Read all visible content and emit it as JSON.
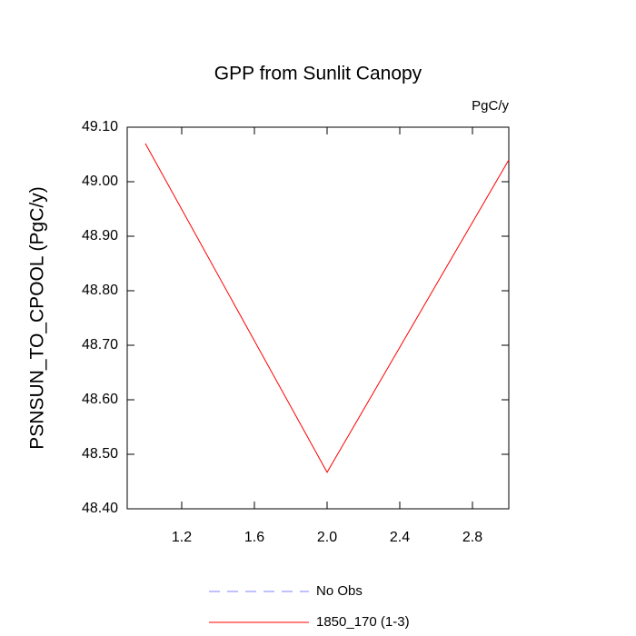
{
  "chart_data": {
    "type": "line",
    "title": "GPP from Sunlit Canopy",
    "units": "PgC/y",
    "y_label": "PSNSUN_TO_CPOOL  (PgC/y)",
    "x": [
      1,
      2,
      3
    ],
    "series": [
      {
        "name": "No Obs",
        "color": "#8080ff",
        "dashed": true,
        "values": [
          null,
          null,
          null
        ]
      },
      {
        "name": "1850_170 (1-3)",
        "color": "#ff0000",
        "dashed": false,
        "values": [
          49.07,
          48.467,
          49.04
        ]
      }
    ],
    "xlim": [
      0.9,
      3.0
    ],
    "xticks": [
      1.2,
      1.6,
      {
        "value": 2,
        "label": "2.0"
      },
      2.4,
      2.8
    ],
    "ylim": [
      48.4,
      49.1
    ],
    "yticks": [
      {
        "value": 48.4,
        "label": "48.40"
      },
      {
        "value": 48.5,
        "label": "48.50"
      },
      {
        "value": 48.6,
        "label": "48.60"
      },
      {
        "value": 48.7,
        "label": "48.70"
      },
      {
        "value": 48.8,
        "label": "48.80"
      },
      {
        "value": 48.9,
        "label": "48.90"
      },
      {
        "value": 49.0,
        "label": "49.00"
      },
      {
        "value": 49.1,
        "label": "49.10"
      }
    ]
  }
}
